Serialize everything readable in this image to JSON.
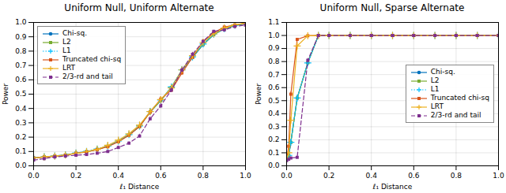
{
  "chart_data": [
    {
      "type": "line",
      "title": "Uniform Null, Uniform Alternate",
      "xlabel": "ℓ₁ Distance",
      "ylabel": "Power",
      "x": [
        0.0,
        0.05,
        0.1,
        0.15,
        0.2,
        0.25,
        0.3,
        0.35,
        0.4,
        0.45,
        0.5,
        0.55,
        0.6,
        0.65,
        0.7,
        0.75,
        0.8,
        0.85,
        0.9,
        0.95,
        1.0
      ],
      "series": [
        {
          "name": "Chi-sq.",
          "color": "#0072BD",
          "marker": "circle",
          "line_style": "solid",
          "values": [
            0.055,
            0.062,
            0.068,
            0.075,
            0.088,
            0.098,
            0.115,
            0.135,
            0.17,
            0.215,
            0.275,
            0.375,
            0.455,
            0.545,
            0.665,
            0.755,
            0.845,
            0.915,
            0.955,
            0.978,
            0.992
          ],
          "errors": [
            0.007,
            0.008,
            0.008,
            0.008,
            0.009,
            0.009,
            0.01,
            0.011,
            0.012,
            0.013,
            0.015,
            0.017,
            0.017,
            0.017,
            0.016,
            0.015,
            0.013,
            0.009,
            0.007,
            0.005,
            0.003
          ]
        },
        {
          "name": "L2",
          "color": "#77AC30",
          "marker": "square",
          "line_style": "solid",
          "values": [
            0.055,
            0.062,
            0.068,
            0.076,
            0.088,
            0.099,
            0.115,
            0.136,
            0.171,
            0.215,
            0.275,
            0.376,
            0.456,
            0.547,
            0.667,
            0.757,
            0.847,
            0.916,
            0.956,
            0.979,
            0.993
          ],
          "errors": [
            0.007,
            0.008,
            0.008,
            0.008,
            0.009,
            0.009,
            0.01,
            0.011,
            0.012,
            0.013,
            0.015,
            0.017,
            0.017,
            0.017,
            0.016,
            0.015,
            0.013,
            0.009,
            0.007,
            0.005,
            0.003
          ]
        },
        {
          "name": "L1",
          "color": "#00BEFF",
          "marker": "plus",
          "line_style": "dotted",
          "values": [
            0.056,
            0.063,
            0.069,
            0.077,
            0.09,
            0.101,
            0.117,
            0.138,
            0.173,
            0.218,
            0.278,
            0.379,
            0.459,
            0.55,
            0.67,
            0.76,
            0.85,
            0.919,
            0.958,
            0.981,
            0.994
          ],
          "errors": [
            0.007,
            0.008,
            0.008,
            0.008,
            0.009,
            0.009,
            0.01,
            0.011,
            0.012,
            0.013,
            0.015,
            0.017,
            0.017,
            0.017,
            0.016,
            0.015,
            0.013,
            0.009,
            0.007,
            0.005,
            0.003
          ]
        },
        {
          "name": "Truncated chi-sq",
          "color": "#D95319",
          "marker": "square",
          "line_style": "solid",
          "values": [
            0.054,
            0.061,
            0.067,
            0.074,
            0.087,
            0.097,
            0.113,
            0.133,
            0.168,
            0.213,
            0.274,
            0.374,
            0.466,
            0.528,
            0.648,
            0.757,
            0.868,
            0.928,
            0.968,
            0.983,
            0.995
          ],
          "errors": [
            0.007,
            0.008,
            0.008,
            0.008,
            0.009,
            0.009,
            0.01,
            0.011,
            0.012,
            0.013,
            0.015,
            0.017,
            0.017,
            0.017,
            0.016,
            0.015,
            0.012,
            0.009,
            0.007,
            0.005,
            0.003
          ]
        },
        {
          "name": "LRT",
          "color": "#EDB120",
          "marker": "plus",
          "line_style": "solid",
          "values": [
            0.055,
            0.062,
            0.068,
            0.075,
            0.088,
            0.099,
            0.115,
            0.143,
            0.179,
            0.224,
            0.284,
            0.378,
            0.462,
            0.543,
            0.669,
            0.769,
            0.861,
            0.921,
            0.961,
            0.984,
            0.995
          ],
          "errors": [
            0.007,
            0.008,
            0.008,
            0.008,
            0.009,
            0.009,
            0.01,
            0.011,
            0.012,
            0.013,
            0.015,
            0.017,
            0.017,
            0.017,
            0.016,
            0.015,
            0.013,
            0.009,
            0.007,
            0.005,
            0.003
          ]
        },
        {
          "name": "2/3-rd and tail",
          "color": "#7E2F8E",
          "marker": "square",
          "line_style": "dashed",
          "values": [
            0.04,
            0.05,
            0.062,
            0.068,
            0.074,
            0.079,
            0.088,
            0.1,
            0.128,
            0.158,
            0.208,
            0.328,
            0.418,
            0.528,
            0.668,
            0.778,
            0.868,
            0.938,
            0.948,
            0.972,
            0.982
          ],
          "errors": [
            0.006,
            0.007,
            0.007,
            0.007,
            0.007,
            0.007,
            0.008,
            0.009,
            0.01,
            0.011,
            0.013,
            0.015,
            0.016,
            0.017,
            0.016,
            0.014,
            0.011,
            0.008,
            0.007,
            0.005,
            0.004
          ]
        }
      ],
      "xlim": [
        0,
        1.0
      ],
      "ylim": [
        0,
        1.0
      ],
      "xticks": [
        {
          "value": 0.0,
          "label": "0.0"
        },
        0.2,
        0.4,
        0.6,
        0.8,
        {
          "value": 1.0,
          "label": "1.0"
        }
      ],
      "yticks": [
        {
          "value": 0.0,
          "label": "0.0"
        },
        0.1,
        0.2,
        0.3,
        0.4,
        0.5,
        0.6,
        0.7,
        0.8,
        0.9,
        {
          "value": 1.0,
          "label": "1.0"
        }
      ],
      "grid": true,
      "legend": "upper left"
    },
    {
      "type": "line",
      "title": "Uniform Null, Sparse Alternate",
      "xlabel": "ℓ₁ Distance",
      "ylabel": "Power",
      "x": [
        0.0,
        0.01,
        0.02,
        0.05,
        0.1,
        0.15,
        0.2,
        0.3,
        0.4,
        0.5,
        0.6,
        0.7,
        0.8,
        0.9,
        1.0
      ],
      "series": [
        {
          "name": "Chi-sq.",
          "color": "#0072BD",
          "marker": "circle",
          "line_style": "solid",
          "values": [
            0.055,
            0.08,
            0.18,
            0.52,
            0.79,
            1.0,
            1.0,
            1.0,
            1.0,
            1.0,
            1.0,
            1.0,
            1.0,
            1.0,
            1.0
          ],
          "errors": [
            0.007,
            0.009,
            0.013,
            0.017,
            0.014,
            0.003,
            0.0,
            0.0,
            0.0,
            0.0,
            0.0,
            0.0,
            0.0,
            0.0,
            0.0
          ]
        },
        {
          "name": "L2",
          "color": "#77AC30",
          "marker": "square",
          "line_style": "solid",
          "values": [
            0.055,
            0.08,
            0.18,
            0.52,
            0.79,
            1.0,
            1.0,
            1.0,
            1.0,
            1.0,
            1.0,
            1.0,
            1.0,
            1.0,
            1.0
          ],
          "errors": [
            0.007,
            0.009,
            0.013,
            0.017,
            0.014,
            0.003,
            0.0,
            0.0,
            0.0,
            0.0,
            0.0,
            0.0,
            0.0,
            0.0,
            0.0
          ]
        },
        {
          "name": "L1",
          "color": "#00BEFF",
          "marker": "plus",
          "line_style": "dotted",
          "values": [
            0.055,
            0.08,
            0.18,
            0.52,
            0.79,
            1.0,
            1.0,
            1.0,
            1.0,
            1.0,
            1.0,
            1.0,
            1.0,
            1.0,
            1.0
          ],
          "errors": [
            0.007,
            0.009,
            0.013,
            0.017,
            0.014,
            0.003,
            0.0,
            0.0,
            0.0,
            0.0,
            0.0,
            0.0,
            0.0,
            0.0,
            0.0
          ]
        },
        {
          "name": "Truncated chi-sq",
          "color": "#D95319",
          "marker": "square",
          "line_style": "solid",
          "values": [
            0.055,
            0.15,
            0.55,
            0.97,
            0.998,
            1.0,
            1.0,
            1.0,
            1.0,
            1.0,
            1.0,
            1.0,
            1.0,
            1.0,
            1.0
          ],
          "errors": [
            0.007,
            0.012,
            0.018,
            0.006,
            0.001,
            0.0,
            0.0,
            0.0,
            0.0,
            0.0,
            0.0,
            0.0,
            0.0,
            0.0,
            0.0
          ]
        },
        {
          "name": "LRT",
          "color": "#EDB120",
          "marker": "plus",
          "line_style": "solid",
          "values": [
            0.055,
            0.1,
            0.35,
            0.92,
            0.998,
            1.0,
            1.0,
            1.0,
            1.0,
            1.0,
            1.0,
            1.0,
            1.0,
            1.0,
            1.0
          ],
          "errors": [
            0.007,
            0.01,
            0.017,
            0.009,
            0.001,
            0.0,
            0.0,
            0.0,
            0.0,
            0.0,
            0.0,
            0.0,
            0.0,
            0.0,
            0.0
          ]
        },
        {
          "name": "2/3-rd and tail",
          "color": "#7E2F8E",
          "marker": "square",
          "line_style": "dashed",
          "values": [
            0.04,
            0.05,
            0.06,
            0.065,
            0.81,
            1.0,
            1.0,
            1.0,
            1.0,
            1.0,
            1.0,
            1.0,
            1.0,
            1.0,
            1.0
          ],
          "errors": [
            0.006,
            0.007,
            0.008,
            0.008,
            0.014,
            0.0,
            0.0,
            0.0,
            0.0,
            0.0,
            0.0,
            0.0,
            0.0,
            0.0,
            0.0
          ]
        }
      ],
      "xlim": [
        0,
        1.0
      ],
      "ylim": [
        0,
        1.1
      ],
      "xticks": [
        {
          "value": 0.0,
          "label": "0.0"
        },
        0.2,
        0.4,
        0.6,
        0.8,
        {
          "value": 1.0,
          "label": "1.0"
        }
      ],
      "yticks": [
        {
          "value": 0.0,
          "label": "0.0"
        },
        0.1,
        0.2,
        0.3,
        0.4,
        0.5,
        0.6,
        0.7,
        0.8,
        0.9,
        {
          "value": 1.0,
          "label": "1.0"
        },
        1.1
      ],
      "grid": true,
      "legend": "center right"
    }
  ]
}
